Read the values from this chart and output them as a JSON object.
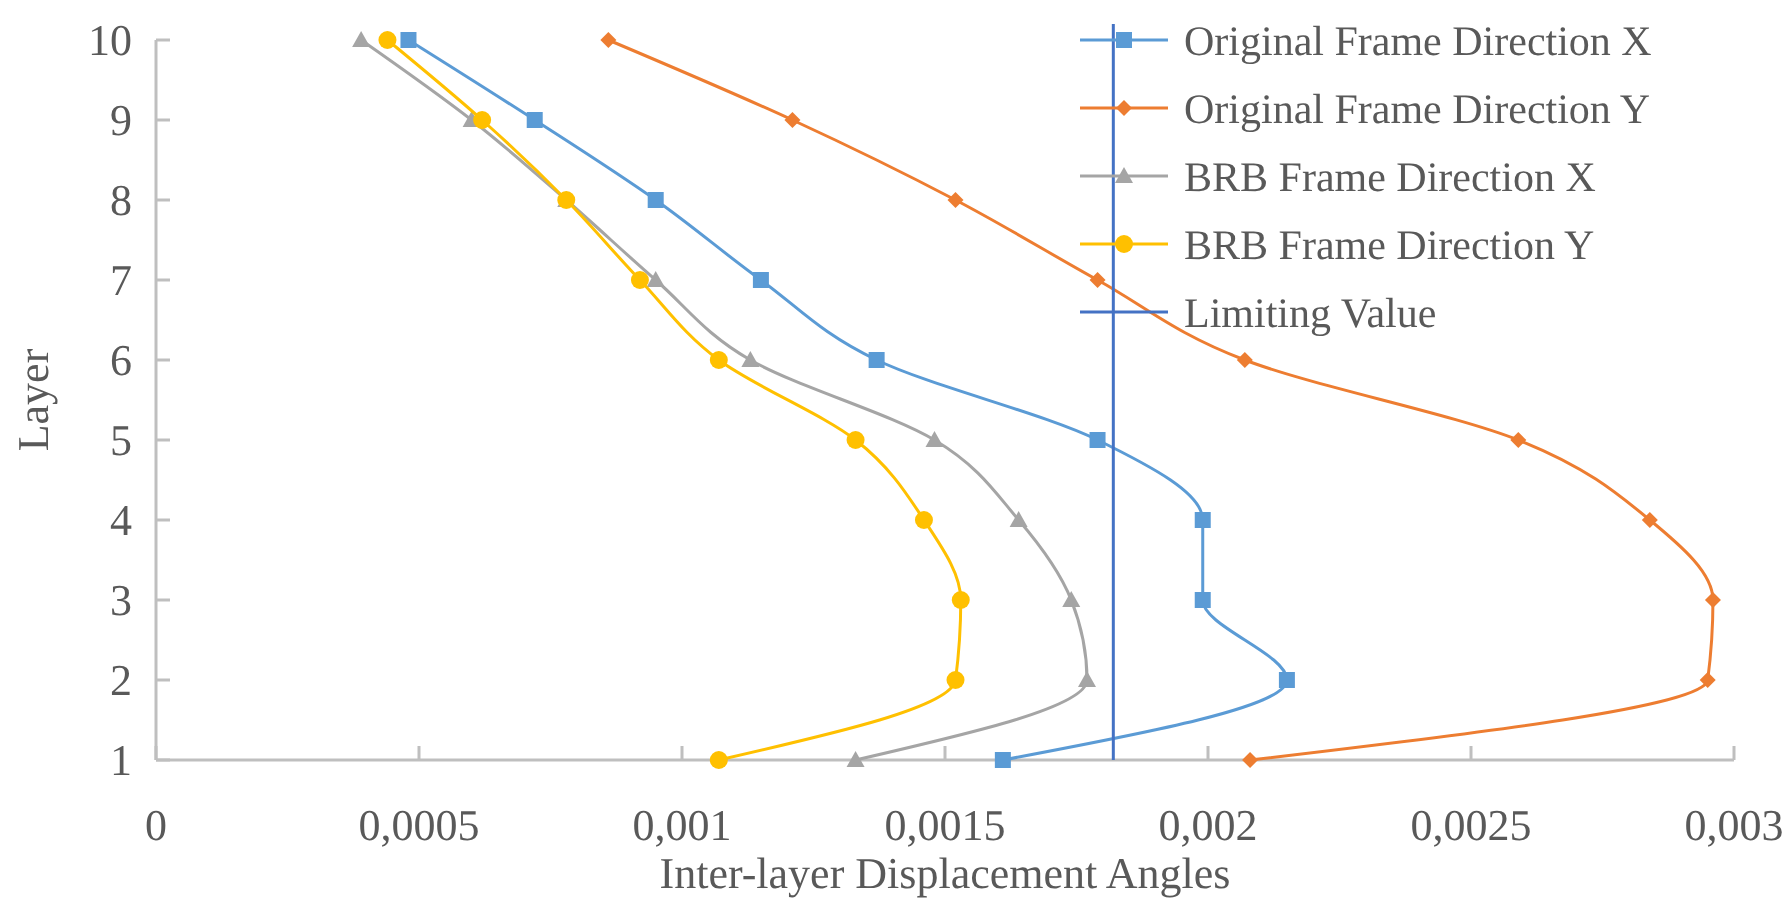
{
  "chart_data": {
    "type": "line",
    "xlabel": "Inter-layer Displacement Angles",
    "ylabel": "Layer",
    "xlim": [
      0,
      0.003
    ],
    "xticks": [
      0,
      {
        "value": 0.0005,
        "label": "0,0005"
      },
      {
        "value": 0.001,
        "label": "0,001"
      },
      {
        "value": 0.0015,
        "label": "0,0015"
      },
      {
        "value": 0.002,
        "label": "0,002"
      },
      {
        "value": 0.0025,
        "label": "0,0025"
      },
      {
        "value": 0.003,
        "label": "0,003"
      }
    ],
    "ylim": [
      1,
      10
    ],
    "yticks": [
      1,
      2,
      3,
      4,
      5,
      6,
      7,
      8,
      9,
      10
    ],
    "grid": false,
    "legend": "top right",
    "series": [
      {
        "name": "Original Frame Direction X",
        "color": "#5b9bd5",
        "marker": "square",
        "x": [
          0.00161,
          0.00215,
          0.00199,
          0.00199,
          0.00179,
          0.00137,
          0.00115,
          0.00095,
          0.00072,
          0.00048
        ],
        "values": [
          1,
          2,
          3,
          4,
          5,
          6,
          7,
          8,
          9,
          10
        ]
      },
      {
        "name": "Original Frame Direction Y",
        "color": "#ed7d31",
        "marker": "diamond",
        "x": [
          0.00208,
          0.00295,
          0.00296,
          0.00284,
          0.00259,
          0.00207,
          0.00179,
          0.00152,
          0.00121,
          0.00086
        ],
        "values": [
          1,
          2,
          3,
          4,
          5,
          6,
          7,
          8,
          9,
          10
        ]
      },
      {
        "name": "BRB Frame Direction X",
        "color": "#a5a5a5",
        "marker": "triangle",
        "x": [
          0.00133,
          0.00177,
          0.00174,
          0.00164,
          0.00148,
          0.00113,
          0.00095,
          0.00078,
          0.0006,
          0.00039
        ],
        "values": [
          1,
          2,
          3,
          4,
          5,
          6,
          7,
          8,
          9,
          10
        ]
      },
      {
        "name": "BRB Frame Direction Y",
        "color": "#ffc000",
        "marker": "circle",
        "x": [
          0.00107,
          0.00152,
          0.00153,
          0.00146,
          0.00133,
          0.00107,
          0.00092,
          0.00078,
          0.00062,
          0.00044
        ],
        "values": [
          1,
          2,
          3,
          4,
          5,
          6,
          7,
          8,
          9,
          10
        ]
      }
    ],
    "ref_lines": [
      {
        "axis": "x",
        "value": 0.00182,
        "label": "Limiting Value",
        "color": "#4472c4"
      }
    ]
  }
}
